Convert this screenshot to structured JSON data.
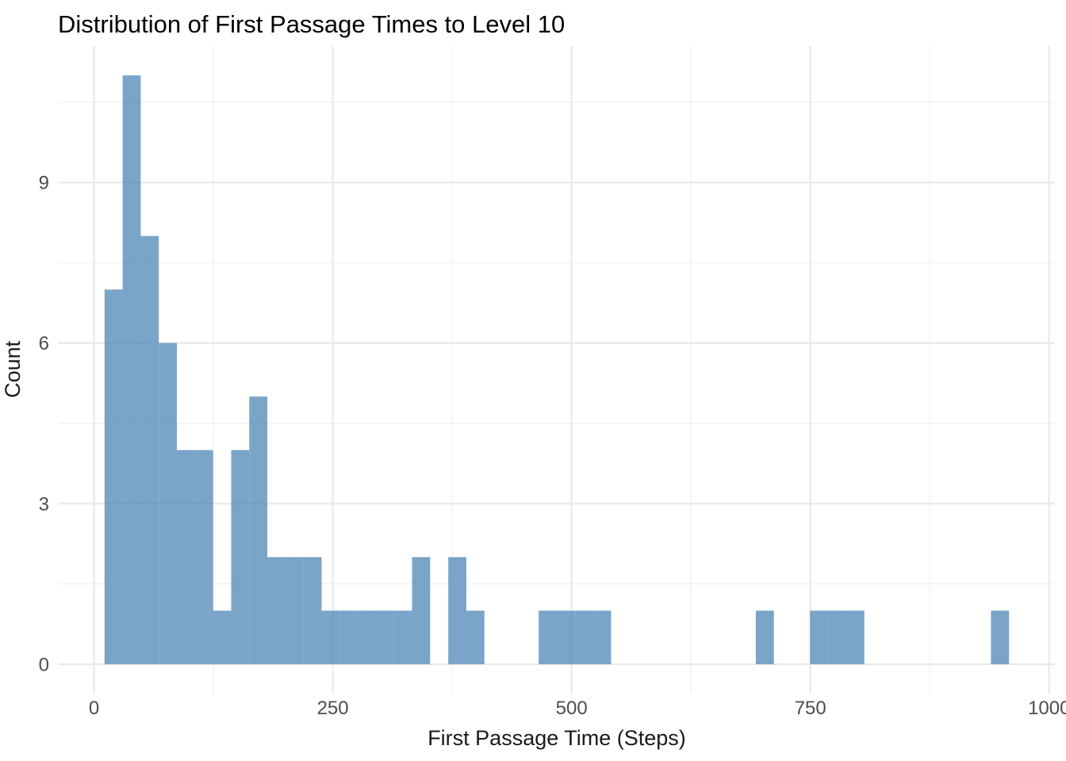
{
  "page": {
    "background": "#FFFFFF"
  },
  "chart_data": {
    "type": "histogram",
    "title": "Distribution of First Passage Times to Level 10",
    "xlabel": "First Passage Time (Steps)",
    "ylabel": "Count",
    "x_tick_values": [
      0,
      250,
      500,
      750,
      1000
    ],
    "x_tick_labels": [
      "0",
      "250",
      "500",
      "750",
      "1000"
    ],
    "y_tick_values": [
      0,
      3,
      6,
      9
    ],
    "y_tick_labels": [
      "0",
      "3",
      "6",
      "9"
    ],
    "x_minor_values": [
      125,
      375,
      625,
      875
    ],
    "y_minor_values": [
      1.5,
      4.5,
      7.5,
      10.5
    ],
    "xlim": [
      -37,
      1006
    ],
    "ylim": [
      -0.55,
      11.55
    ],
    "bin_start": 11,
    "bin_width": 18.94,
    "counts": [
      7,
      11,
      8,
      6,
      4,
      4,
      1,
      4,
      5,
      2,
      2,
      2,
      1,
      1,
      1,
      1,
      1,
      2,
      0,
      2,
      1,
      0,
      0,
      0,
      1,
      1,
      1,
      1,
      0,
      0,
      0,
      0,
      0,
      0,
      0,
      0,
      1,
      0,
      0,
      1,
      1,
      1,
      0,
      0,
      0,
      0,
      0,
      0,
      0,
      1
    ],
    "ymax_bar": 11,
    "legend": "none",
    "grid": "major-and-minor",
    "colors": {
      "bar_fill": "#4682B4",
      "bar_opacity": 0.72,
      "grid_major": "#E9E9E9",
      "grid_minor": "#F1F1F1",
      "tick_label": "#4D4D4D",
      "title_text": "#000000",
      "background": "#FFFFFF"
    }
  }
}
